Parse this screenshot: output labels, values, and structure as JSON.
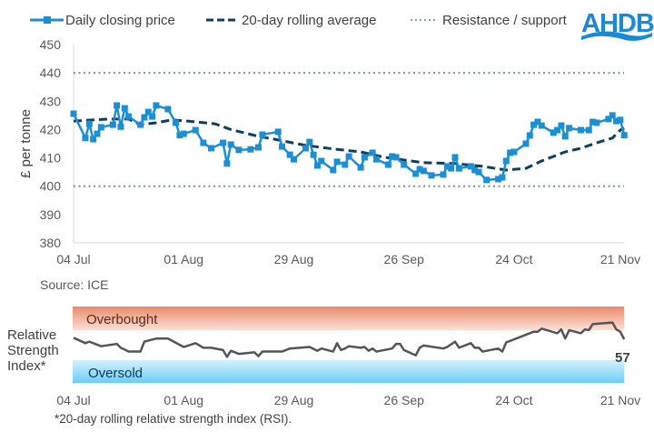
{
  "chart_data": [
    {
      "type": "line",
      "legend": {
        "placement": "top",
        "entries": [
          "Daily closing price",
          "20-day rolling average",
          "Resistance / support"
        ]
      },
      "ylabel": "£ per tonne",
      "ylim": [
        380,
        450
      ],
      "yticks": [
        "380",
        "390",
        "400",
        "410",
        "420",
        "430",
        "440",
        "450"
      ],
      "xticks": [
        "04 Jul",
        "01 Aug",
        "29 Aug",
        "26 Sep",
        "24 Oct",
        "21 Nov"
      ],
      "grid": false,
      "source": "Source: ICE",
      "resistance_support": [
        440,
        400
      ],
      "colors": {
        "price": "#1b8fd2",
        "average": "#0d3f5f",
        "resistance": "#8798a8"
      },
      "series": [
        {
          "name": "Daily closing price",
          "points": [
            [
              "04 Jul",
              425.6
            ],
            [
              "07 Jul",
              417.0
            ],
            [
              "08 Jul",
              422.0
            ],
            [
              "09 Jul",
              416.6
            ],
            [
              "10 Jul",
              418.5
            ],
            [
              "11 Jul",
              420.8
            ],
            [
              "14 Jul",
              421.7
            ],
            [
              "15 Jul",
              428.5
            ],
            [
              "16 Jul",
              421.0
            ],
            [
              "17 Jul",
              427.5
            ],
            [
              "18 Jul",
              424.6
            ],
            [
              "21 Jul",
              421.7
            ],
            [
              "22 Jul",
              424.3
            ],
            [
              "23 Jul",
              426.2
            ],
            [
              "24 Jul",
              424.6
            ],
            [
              "25 Jul",
              428.5
            ],
            [
              "28 Jul",
              427.2
            ],
            [
              "30 Jul",
              422.4
            ],
            [
              "31 Jul",
              418.0
            ],
            [
              "01 Aug",
              418.5
            ],
            [
              "04 Aug",
              419.8
            ],
            [
              "06 Aug",
              415.3
            ],
            [
              "08 Aug",
              413.4
            ],
            [
              "11 Aug",
              415.3
            ],
            [
              "12 Aug",
              408.0
            ],
            [
              "13 Aug",
              414.7
            ],
            [
              "15 Aug",
              412.8
            ],
            [
              "18 Aug",
              413.0
            ],
            [
              "20 Aug",
              413.7
            ],
            [
              "21 Aug",
              418.2
            ],
            [
              "25 Aug",
              419.2
            ],
            [
              "26 Aug",
              414.0
            ],
            [
              "28 Aug",
              411.1
            ],
            [
              "29 Aug",
              409.5
            ],
            [
              "01 Sep",
              413.4
            ],
            [
              "02 Sep",
              415.6
            ],
            [
              "03 Sep",
              411.1
            ],
            [
              "04 Sep",
              407.3
            ],
            [
              "05 Sep",
              408.9
            ],
            [
              "08 Sep",
              405.7
            ],
            [
              "09 Sep",
              408.6
            ],
            [
              "11 Sep",
              407.6
            ],
            [
              "12 Sep",
              410.5
            ],
            [
              "15 Sep",
              406.6
            ],
            [
              "16 Sep",
              410.2
            ],
            [
              "18 Sep",
              411.8
            ],
            [
              "19 Sep",
              409.5
            ],
            [
              "22 Sep",
              407.6
            ],
            [
              "23 Sep",
              410.5
            ],
            [
              "24 Sep",
              410.2
            ],
            [
              "26 Sep",
              407.6
            ],
            [
              "29 Sep",
              404.4
            ],
            [
              "30 Sep",
              406.0
            ],
            [
              "01 Oct",
              405.4
            ],
            [
              "03 Oct",
              403.8
            ],
            [
              "06 Oct",
              404.1
            ],
            [
              "07 Oct",
              407.0
            ],
            [
              "08 Oct",
              406.3
            ],
            [
              "09 Oct",
              410.2
            ],
            [
              "10 Oct",
              406.3
            ],
            [
              "13 Oct",
              407.0
            ],
            [
              "14 Oct",
              405.7
            ],
            [
              "15 Oct",
              405.0
            ],
            [
              "17 Oct",
              402.2
            ],
            [
              "20 Oct",
              402.5
            ],
            [
              "21 Oct",
              403.1
            ],
            [
              "22 Oct",
              408.9
            ],
            [
              "23 Oct",
              411.8
            ],
            [
              "24 Oct",
              412.1
            ],
            [
              "27 Oct",
              415.0
            ],
            [
              "28 Oct",
              417.9
            ],
            [
              "29 Oct",
              421.7
            ],
            [
              "30 Oct",
              422.7
            ],
            [
              "31 Oct",
              421.4
            ],
            [
              "03 Nov",
              418.9
            ],
            [
              "04 Nov",
              419.8
            ],
            [
              "05 Nov",
              421.4
            ],
            [
              "06 Nov",
              417.6
            ],
            [
              "07 Nov",
              420.5
            ],
            [
              "10 Nov",
              419.8
            ],
            [
              "12 Nov",
              419.8
            ],
            [
              "13 Nov",
              422.7
            ],
            [
              "14 Nov",
              422.4
            ],
            [
              "17 Nov",
              423.7
            ],
            [
              "18 Nov",
              425.0
            ],
            [
              "19 Nov",
              423.0
            ],
            [
              "20 Nov",
              423.4
            ],
            [
              "21 Nov",
              418.0
            ]
          ]
        },
        {
          "name": "20-day rolling average",
          "points": [
            [
              "04 Jul",
              423.0
            ],
            [
              "13 Jul",
              423.7
            ],
            [
              "18 Jul",
              423.7
            ],
            [
              "21 Jul",
              421.7
            ],
            [
              "25 Jul",
              422.4
            ],
            [
              "29 Jul",
              423.4
            ],
            [
              "02 Aug",
              423.0
            ],
            [
              "09 Aug",
              422.0
            ],
            [
              "13 Aug",
              420.0
            ],
            [
              "20 Aug",
              417.6
            ],
            [
              "24 Aug",
              416.6
            ],
            [
              "01 Sep",
              414.4
            ],
            [
              "09 Sep",
              413.0
            ],
            [
              "15 Sep",
              412.1
            ],
            [
              "21 Sep",
              410.2
            ],
            [
              "01 Oct",
              408.3
            ],
            [
              "09 Oct",
              408.0
            ],
            [
              "16 Oct",
              407.0
            ],
            [
              "22 Oct",
              405.7
            ],
            [
              "27 Oct",
              406.3
            ],
            [
              "31 Oct",
              408.9
            ],
            [
              "06 Nov",
              412.1
            ],
            [
              "10 Nov",
              413.4
            ],
            [
              "14 Nov",
              415.3
            ],
            [
              "18 Nov",
              417.0
            ],
            [
              "20 Nov",
              419.8
            ],
            [
              "21 Nov",
              420.5
            ]
          ]
        }
      ]
    },
    {
      "type": "line",
      "ylabel": "Relative Strength Index*",
      "ylim": [
        0,
        100
      ],
      "bands": {
        "overbought": {
          "label": "Overbought",
          "from": 70,
          "to": 100,
          "color": "#e98a6c"
        },
        "oversold": {
          "label": "Oversold",
          "from": 0,
          "to": 30,
          "color": "#6dcdf4"
        }
      },
      "xticks": [
        "04 Jul",
        "01 Aug",
        "29 Aug",
        "26 Sep",
        "24 Oct",
        "21 Nov"
      ],
      "last_value_label": "57",
      "footnote": "*20-day rolling relative strength index (RSI).",
      "color": "#555555",
      "points": [
        [
          "04 Jul",
          59
        ],
        [
          "07 Jul",
          52
        ],
        [
          "08 Jul",
          54
        ],
        [
          "11 Jul",
          48
        ],
        [
          "15 Jul",
          51
        ],
        [
          "16 Jul",
          46
        ],
        [
          "18 Jul",
          41
        ],
        [
          "21 Jul",
          41
        ],
        [
          "22 Jul",
          54
        ],
        [
          "25 Jul",
          58
        ],
        [
          "28 Jul",
          58
        ],
        [
          "01 Aug",
          47
        ],
        [
          "04 Aug",
          52
        ],
        [
          "06 Aug",
          46
        ],
        [
          "08 Aug",
          46
        ],
        [
          "11 Aug",
          43
        ],
        [
          "12 Aug",
          34
        ],
        [
          "13 Aug",
          42
        ],
        [
          "15 Aug",
          38
        ],
        [
          "19 Aug",
          40
        ],
        [
          "20 Aug",
          35
        ],
        [
          "21 Aug",
          41
        ],
        [
          "26 Aug",
          41
        ],
        [
          "28 Aug",
          45
        ],
        [
          "02 Sep",
          47
        ],
        [
          "04 Sep",
          42
        ],
        [
          "05 Sep",
          45
        ],
        [
          "08 Sep",
          41
        ],
        [
          "09 Sep",
          52
        ],
        [
          "10 Sep",
          43
        ],
        [
          "11 Sep",
          45
        ],
        [
          "12 Sep",
          48
        ],
        [
          "15 Sep",
          46
        ],
        [
          "16 Sep",
          47
        ],
        [
          "17 Sep",
          42
        ],
        [
          "18 Sep",
          45
        ],
        [
          "19 Sep",
          41
        ],
        [
          "23 Sep",
          45
        ],
        [
          "24 Sep",
          51
        ],
        [
          "25 Sep",
          51
        ],
        [
          "26 Sep",
          43
        ],
        [
          "29 Sep",
          36
        ],
        [
          "30 Sep",
          46
        ],
        [
          "01 Oct",
          49
        ],
        [
          "06 Oct",
          45
        ],
        [
          "07 Oct",
          47
        ],
        [
          "09 Oct",
          54
        ],
        [
          "10 Oct",
          46
        ],
        [
          "13 Oct",
          52
        ],
        [
          "14 Oct",
          46
        ],
        [
          "15 Oct",
          46
        ],
        [
          "16 Oct",
          41
        ],
        [
          "20 Oct",
          45
        ],
        [
          "21 Oct",
          41
        ],
        [
          "22 Oct",
          53
        ],
        [
          "27 Oct",
          63
        ],
        [
          "29 Oct",
          67
        ],
        [
          "30 Oct",
          67
        ],
        [
          "31 Oct",
          71
        ],
        [
          "04 Nov",
          65
        ],
        [
          "05 Nov",
          70
        ],
        [
          "06 Nov",
          58
        ],
        [
          "07 Nov",
          69
        ],
        [
          "10 Nov",
          65
        ],
        [
          "11 Nov",
          70
        ],
        [
          "12 Nov",
          69
        ],
        [
          "13 Nov",
          77
        ],
        [
          "18 Nov",
          79
        ],
        [
          "19 Nov",
          70
        ],
        [
          "20 Nov",
          67
        ],
        [
          "21 Nov",
          57
        ]
      ]
    }
  ],
  "logo": {
    "text": "AHDB",
    "color": "#1a8ad4"
  }
}
